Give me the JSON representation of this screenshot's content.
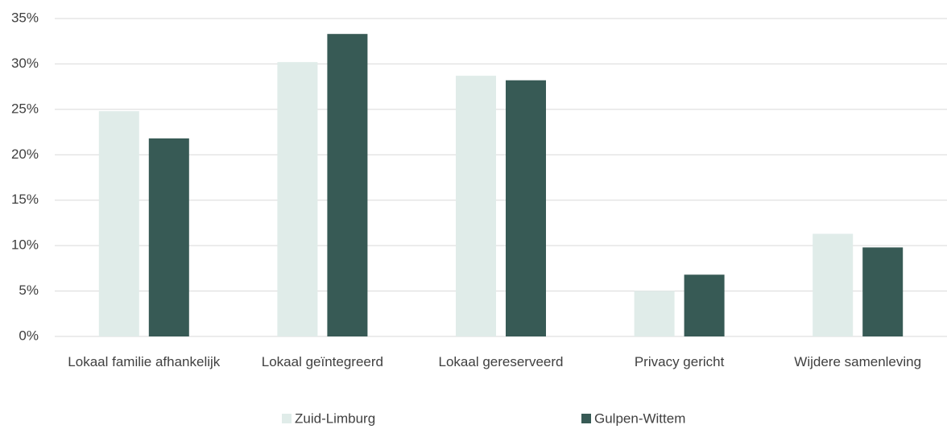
{
  "chart_data": {
    "type": "bar",
    "categories": [
      "Lokaal familie afhankelijk",
      "Lokaal geïntegreerd",
      "Lokaal gereserveerd",
      "Privacy gericht",
      "Wijdere samenleving"
    ],
    "series": [
      {
        "name": "Zuid-Limburg",
        "color": "#e0ece9",
        "values": [
          24.8,
          30.2,
          28.7,
          5.0,
          11.3
        ]
      },
      {
        "name": "Gulpen-Wittem",
        "color": "#375a55",
        "values": [
          21.8,
          33.3,
          28.2,
          6.8,
          9.8
        ]
      }
    ],
    "ylim": [
      0,
      35
    ],
    "yticks": [
      {
        "value": 0,
        "label": "0%"
      },
      {
        "value": 5,
        "label": "5%"
      },
      {
        "value": 10,
        "label": "10%"
      },
      {
        "value": 15,
        "label": "15%"
      },
      {
        "value": 20,
        "label": "20%"
      },
      {
        "value": 25,
        "label": "25%"
      },
      {
        "value": 30,
        "label": "30%"
      },
      {
        "value": 35,
        "label": "35%"
      }
    ],
    "grid": true,
    "legend": "bottom"
  }
}
